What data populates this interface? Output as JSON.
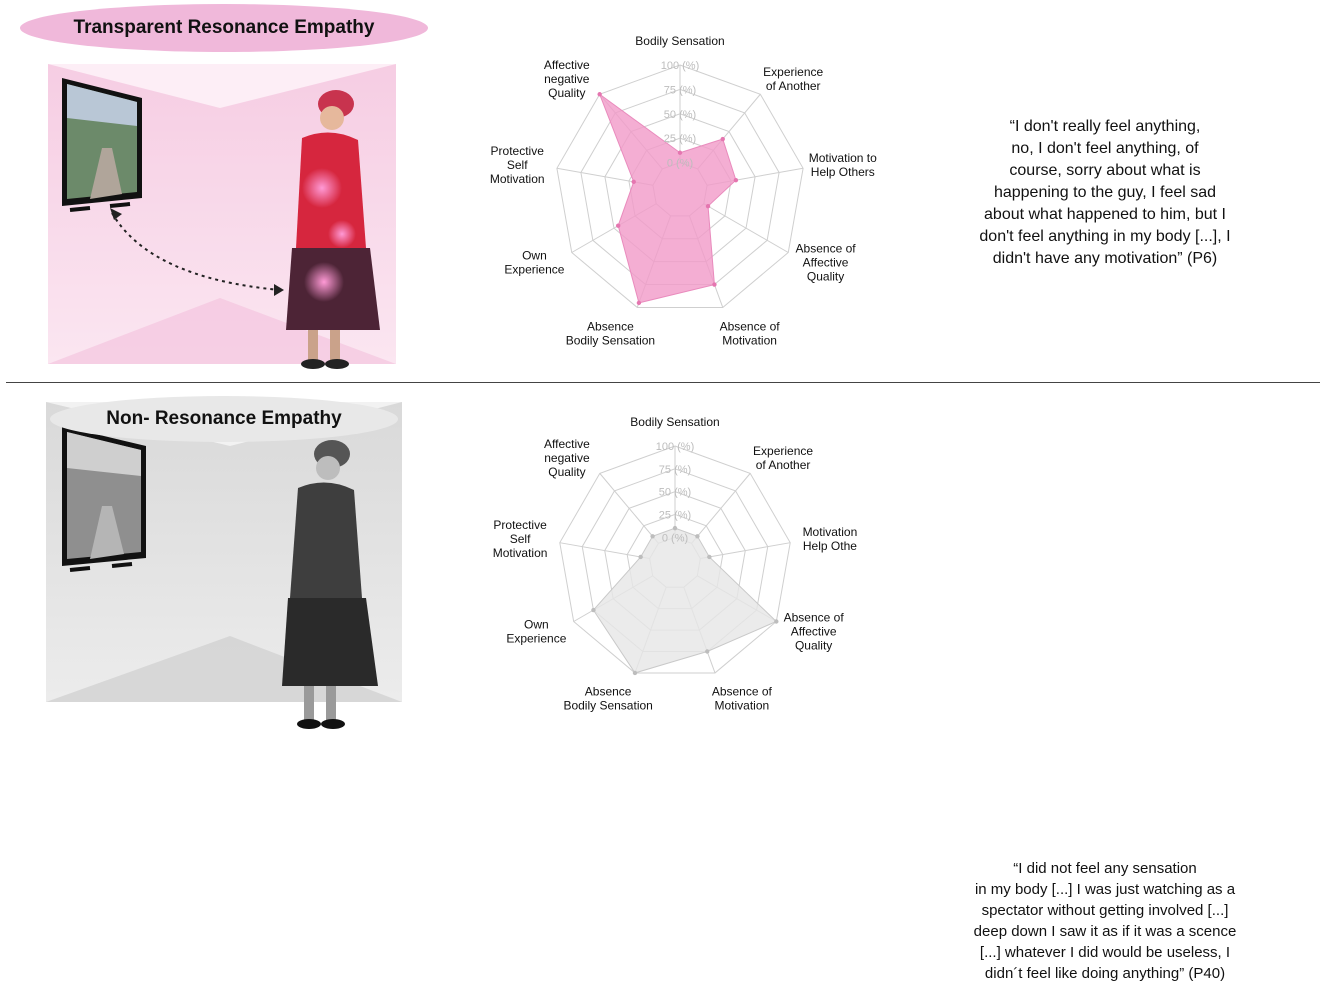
{
  "chart_data": [
    {
      "type": "radar",
      "title": "Transparent Resonance Empathy",
      "axes": [
        "Bodily Sensation",
        "Experience of Another",
        "Motivation to Help Others",
        "Absence of Affective Quality",
        "Absence of Motivation",
        "Absence Bodily Sensation",
        "Own Experience",
        "Protective Self Motivation",
        "Affective negative Quality"
      ],
      "axis_label_lines": [
        [
          "Bodily Sensation"
        ],
        [
          "Experience",
          "of Another"
        ],
        [
          "Motivation to",
          "Help Others"
        ],
        [
          "Absence of",
          "Affective",
          "Quality"
        ],
        [
          "Absence of",
          "Motivation"
        ],
        [
          "Absence",
          "Bodily Sensation"
        ],
        [
          "Own",
          "Experience"
        ],
        [
          "Protective",
          "Self",
          "Motivation"
        ],
        [
          "Affective",
          "negative",
          "Quality"
        ]
      ],
      "scale_labels": [
        "0 (%)",
        "25 (%)",
        "50 (%)",
        "75 (%)",
        "100 (%)"
      ],
      "range": [
        0,
        100
      ],
      "series": [
        {
          "values": [
            10,
            40,
            30,
            5,
            75,
            95,
            45,
            20,
            100
          ]
        }
      ],
      "color": "#f19ac8",
      "quote": "“I don't really feel anything,\nno, I don't feel anything, of\ncourse, sorry about what is\nhappening to the guy, I feel sad\nabout what happened to him, but I\ndon't feel anything in my body [...], I\ndidn't have any motivation” (P6)"
    },
    {
      "type": "radar",
      "title": "Non- Resonance Empathy",
      "axes": [
        "Bodily Sensation",
        "Experience of Another",
        "Motivation to Help Others",
        "Absence of Affective Quality",
        "Absence of Motivation",
        "Absence Bodily Sensation",
        "Own Experience",
        "Protective Self Motivation",
        "Affective negative Quality"
      ],
      "axis_label_lines": [
        [
          "Bodily Sensation"
        ],
        [
          "Experience",
          "of Another"
        ],
        [
          "Motivation",
          "Help Othe"
        ],
        [
          "Absence of",
          "Affective",
          "Quality"
        ],
        [
          "Absence of",
          "Motivation"
        ],
        [
          "Absence",
          "Bodily Sensation"
        ],
        [
          "Own",
          "Experience"
        ],
        [
          "Protective",
          "Self",
          "Motivation"
        ],
        [
          "Affective",
          "negative",
          "Quality"
        ]
      ],
      "scale_labels": [
        "0 (%)",
        "25 (%)",
        "50 (%)",
        "75 (%)",
        "100 (%)"
      ],
      "range": [
        0,
        100
      ],
      "series": [
        {
          "values": [
            10,
            10,
            10,
            100,
            75,
            100,
            75,
            10,
            10
          ]
        }
      ],
      "color": "#e6e6e6",
      "quote": "“I did not feel any sensation\nin my body [...] I was  just watching as a\nspectator without getting involved [...]\ndeep down I saw it as if it was a scence\n[...] whatever I did would be useless, I\ndidn´t feel like doing anything” (P40)"
    }
  ]
}
